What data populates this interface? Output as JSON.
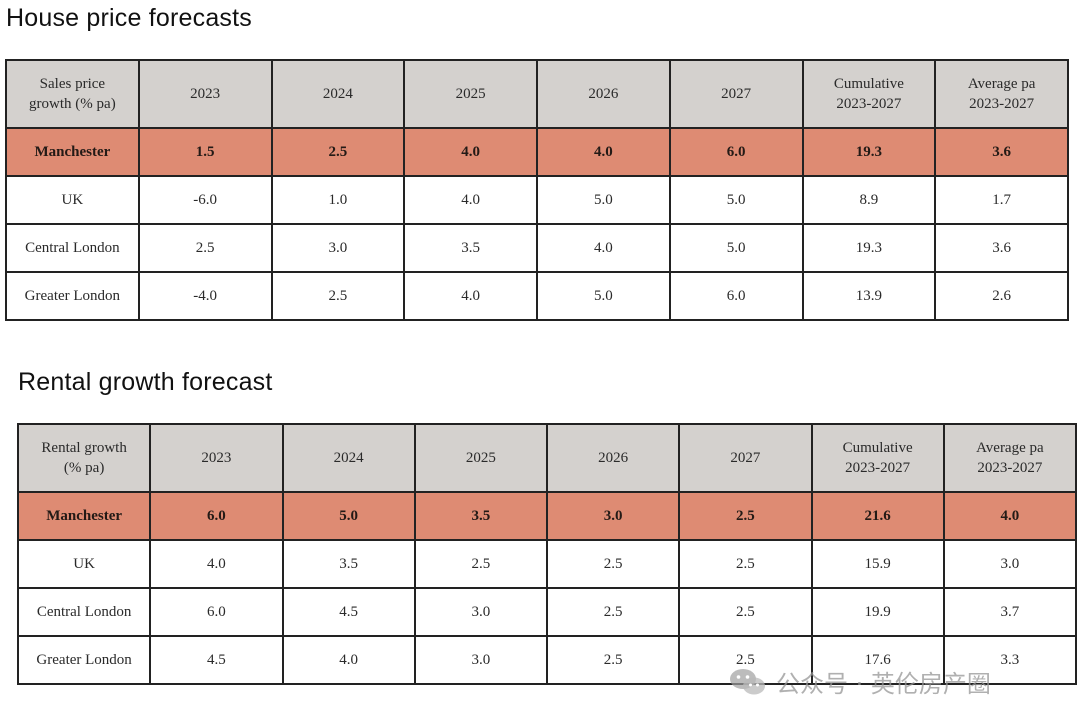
{
  "house_price": {
    "title": "House price forecasts",
    "header": [
      "Sales price\ngrowth (% pa)",
      "2023",
      "2024",
      "2025",
      "2026",
      "2027",
      "Cumulative\n2023-2027",
      "Average pa\n2023-2027"
    ],
    "rows": [
      {
        "highlight": true,
        "cells": [
          "Manchester",
          "1.5",
          "2.5",
          "4.0",
          "4.0",
          "6.0",
          "19.3",
          "3.6"
        ]
      },
      {
        "highlight": false,
        "cells": [
          "UK",
          "-6.0",
          "1.0",
          "4.0",
          "5.0",
          "5.0",
          "8.9",
          "1.7"
        ]
      },
      {
        "highlight": false,
        "cells": [
          "Central London",
          "2.5",
          "3.0",
          "3.5",
          "4.0",
          "5.0",
          "19.3",
          "3.6"
        ]
      },
      {
        "highlight": false,
        "cells": [
          "Greater London",
          "-4.0",
          "2.5",
          "4.0",
          "5.0",
          "6.0",
          "13.9",
          "2.6"
        ]
      }
    ]
  },
  "rental": {
    "title": "Rental growth forecast",
    "header": [
      "Rental growth\n(% pa)",
      "2023",
      "2024",
      "2025",
      "2026",
      "2027",
      "Cumulative\n2023-2027",
      "Average pa\n2023-2027"
    ],
    "rows": [
      {
        "highlight": true,
        "cells": [
          "Manchester",
          "6.0",
          "5.0",
          "3.5",
          "3.0",
          "2.5",
          "21.6",
          "4.0"
        ]
      },
      {
        "highlight": false,
        "cells": [
          "UK",
          "4.0",
          "3.5",
          "2.5",
          "2.5",
          "2.5",
          "15.9",
          "3.0"
        ]
      },
      {
        "highlight": false,
        "cells": [
          "Central London",
          "6.0",
          "4.5",
          "3.0",
          "2.5",
          "2.5",
          "19.9",
          "3.7"
        ]
      },
      {
        "highlight": false,
        "cells": [
          "Greater London",
          "4.5",
          "4.0",
          "3.0",
          "2.5",
          "2.5",
          "17.6",
          "3.3"
        ]
      }
    ]
  },
  "colors": {
    "header_bg": "#d4d1ce",
    "highlight_bg": "#de8b73",
    "border": "#222222"
  },
  "watermark": {
    "text": "公众号 · 英伦房产圈",
    "icon": "wechat-icon"
  }
}
